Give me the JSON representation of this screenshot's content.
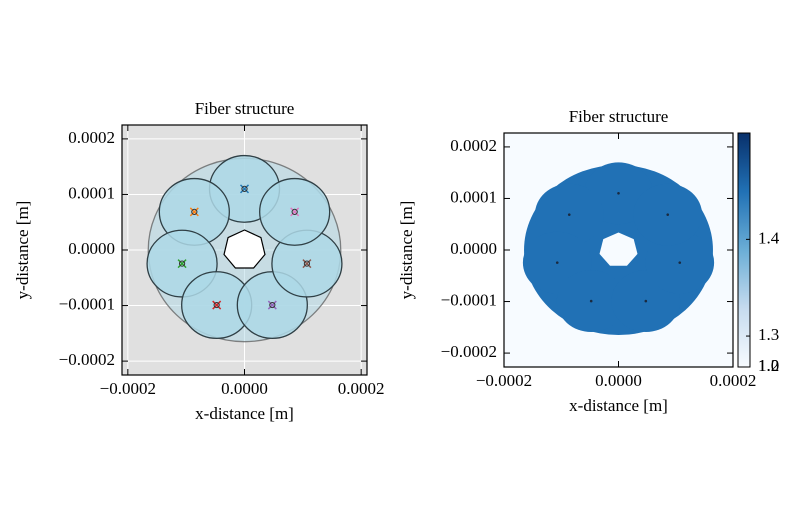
{
  "chart_data": [
    {
      "type": "structure",
      "title": "Fiber structure",
      "x_label": "x-distance [m]",
      "y_label": "y-distance [m]",
      "xlim": [
        -0.00021,
        0.00021
      ],
      "ylim": [
        -0.000225,
        0.000225
      ],
      "xticks": [
        {
          "value": -0.0002,
          "label": "−0.0002"
        },
        {
          "value": 0,
          "label": "0.0000"
        },
        0.0002
      ],
      "yticks": [
        {
          "value": -0.0002,
          "label": "−0.0002"
        },
        {
          "value": -0.0001,
          "label": "−0.0001"
        },
        {
          "value": 0,
          "label": "0.0000"
        },
        0.0001,
        0.0002
      ],
      "grid": true,
      "background": "#e0e0e0",
      "jacket_radius": 0.000165,
      "hole_radius": 3.6e-05,
      "tube_radius": 6e-05,
      "tube_color": "#add8e6",
      "tubes": {
        "x": [
          0,
          -8.6e-05,
          -0.000107,
          -4.77e-05,
          4.77e-05,
          0.000107,
          8.6e-05
        ],
        "y": [
          0.00011,
          6.86e-05,
          -2.45e-05,
          -9.91e-05,
          -9.91e-05,
          -2.45e-05,
          6.86e-05
        ],
        "colors": [
          "#1f77b4",
          "#ff7f0e",
          "#2ca02c",
          "#d62728",
          "#9467bd",
          "#8c564b",
          "#e377c2"
        ]
      }
    },
    {
      "type": "heatmap",
      "title": "Fiber structure",
      "x_label": "x-distance [m]",
      "y_label": "y-distance [m]",
      "xlim": [
        -0.0002,
        0.0002
      ],
      "ylim": [
        -0.000227,
        0.000227
      ],
      "xticks": [
        {
          "value": -0.0002,
          "label": "−0.0002"
        },
        {
          "value": 0,
          "label": "0.0000"
        },
        0.0002
      ],
      "yticks": [
        {
          "value": -0.0002,
          "label": "−0.0002"
        },
        {
          "value": -0.0001,
          "label": "−0.0001"
        },
        {
          "value": 0,
          "label": "0.0000"
        },
        0.0001,
        0.0002
      ],
      "jacket_radius": 0.000165,
      "hole_radius": 3.4e-05,
      "tube_radius": 6e-05,
      "tubes": {
        "x": [
          0,
          -8.6e-05,
          -0.000107,
          -4.77e-05,
          4.77e-05,
          0.000107,
          8.6e-05
        ],
        "y": [
          0.00011,
          6.86e-05,
          -2.45e-05,
          -9.91e-05,
          -9.91e-05,
          -2.45e-05,
          6.86e-05
        ]
      },
      "index_glass": 1.45,
      "index_air": 1.0,
      "colorbar_lim": [
        1.268,
        1.51
      ],
      "colorbar_ticks": [
        1.4,
        1.3,
        1.2,
        {
          "value": 1.0,
          "label": "1.0"
        }
      ],
      "colormap": [
        "#f7fbff",
        "#c6dbef",
        "#6baed6",
        "#2171b5",
        "#08306b"
      ]
    }
  ]
}
